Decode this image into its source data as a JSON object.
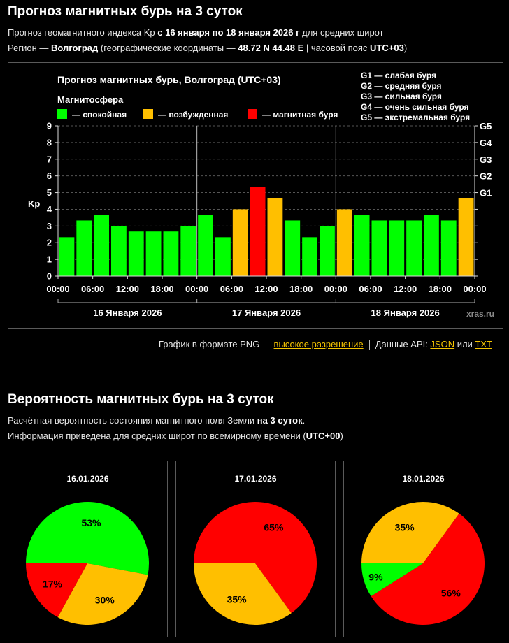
{
  "page": {
    "title": "Прогноз магнитных бурь на 3 суток",
    "subtitle_pre": "Прогноз геомагнитного индекса Kp ",
    "subtitle_range": "с 16 января по 18 января 2026 г",
    "subtitle_post": " для средних широт",
    "region_label": "Регион — ",
    "region_name": "Волгоград",
    "coords_label": " (географические координаты — ",
    "coords": "48.72 N 44.48 E",
    "tz_label": " | часовой пояс ",
    "tz": "UTC+03",
    "tz_close": ")"
  },
  "footer": {
    "png_text": "График в формате PNG — ",
    "png_link": "высокое разрешение",
    "api_text": "Данные API: ",
    "json_link": "JSON",
    "or_text": " или ",
    "txt_link": "TXT"
  },
  "prob": {
    "title": "Вероятность магнитных бурь на 3 суток",
    "line1_pre": "Расчётная вероятность состояния магнитного поля Земли ",
    "line1_bold": "на 3 суток",
    "line1_post": ".",
    "line2_pre": "Информация приведена для средних широт по всемирному времени (",
    "line2_bold": "UTC+00",
    "line2_post": ")"
  },
  "colors": {
    "quiet": "#00ff00",
    "active": "#ffbf00",
    "storm": "#ff0000",
    "background": "#000000"
  },
  "chart_data": [
    {
      "type": "bar",
      "title": "Прогноз магнитных бурь, Волгоград (UTC+03)",
      "legend_title": "Магнитосфера",
      "legend": [
        {
          "label": "— спокойная",
          "status": "quiet"
        },
        {
          "label": "— возбужденная",
          "status": "active"
        },
        {
          "label": "— магнитная буря",
          "status": "storm"
        }
      ],
      "g_scale": [
        "G1 — слабая буря",
        "G2 — средняя буря",
        "G3 — сильная буря",
        "G4 — очень сильная буря",
        "G5 — экстремальная буря"
      ],
      "ylabel": "Kp",
      "ylim": [
        0,
        9
      ],
      "yticks": [
        "0",
        "1",
        "2",
        "3",
        "4",
        "5",
        "6",
        "7",
        "8",
        "9"
      ],
      "right_ticks": [
        {
          "label": "G1",
          "kp": 5
        },
        {
          "label": "G2",
          "kp": 6
        },
        {
          "label": "G3",
          "kp": 7
        },
        {
          "label": "G4",
          "kp": 8
        },
        {
          "label": "G5",
          "kp": 9
        }
      ],
      "time_labels": [
        "00:00",
        "06:00",
        "12:00",
        "18:00",
        "00:00",
        "06:00",
        "12:00",
        "18:00",
        "00:00",
        "06:00",
        "12:00",
        "18:00",
        "00:00"
      ],
      "days": [
        "16 Января 2026",
        "17 Января 2026",
        "18 Января 2026"
      ],
      "watermark": "xras.ru",
      "values": [
        2.33,
        3.33,
        3.67,
        3.0,
        2.67,
        2.67,
        2.67,
        3.0,
        3.67,
        2.33,
        4.0,
        5.33,
        4.67,
        3.33,
        2.33,
        3.0,
        4.0,
        3.67,
        3.33,
        3.33,
        3.33,
        3.67,
        3.33,
        4.67
      ],
      "statuses": [
        "quiet",
        "quiet",
        "quiet",
        "quiet",
        "quiet",
        "quiet",
        "quiet",
        "quiet",
        "quiet",
        "quiet",
        "active",
        "storm",
        "active",
        "quiet",
        "quiet",
        "quiet",
        "active",
        "quiet",
        "quiet",
        "quiet",
        "quiet",
        "quiet",
        "quiet",
        "active"
      ]
    },
    {
      "type": "pie",
      "title": "16.01.2026",
      "slices": [
        {
          "status": "quiet",
          "value": 53,
          "label": "53%"
        },
        {
          "status": "active",
          "value": 30,
          "label": "30%"
        },
        {
          "status": "storm",
          "value": 17,
          "label": "17%"
        }
      ]
    },
    {
      "type": "pie",
      "title": "17.01.2026",
      "slices": [
        {
          "status": "storm",
          "value": 65,
          "label": "65%"
        },
        {
          "status": "active",
          "value": 35,
          "label": "35%"
        }
      ]
    },
    {
      "type": "pie",
      "title": "18.01.2026",
      "slices": [
        {
          "status": "active",
          "value": 35,
          "label": "35%"
        },
        {
          "status": "storm",
          "value": 56,
          "label": "56%"
        },
        {
          "status": "quiet",
          "value": 9,
          "label": "9%"
        }
      ]
    }
  ]
}
